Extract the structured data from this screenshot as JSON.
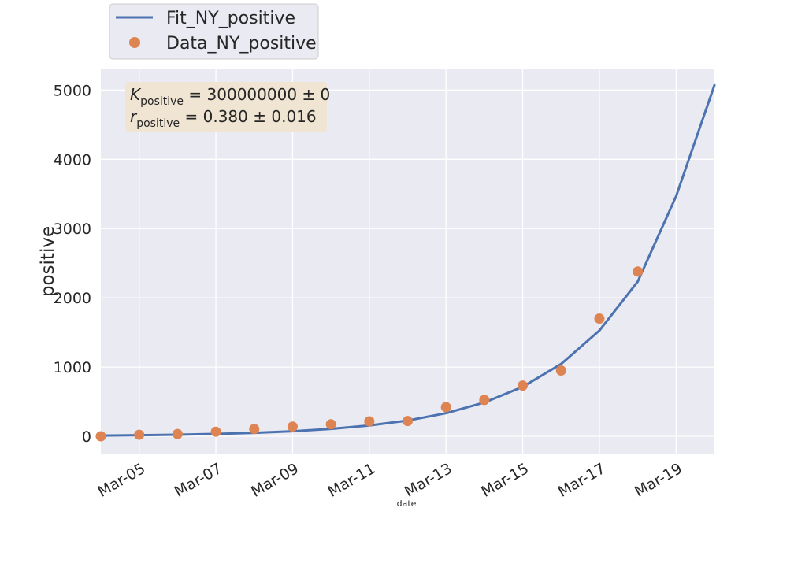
{
  "chart_data": {
    "type": "line",
    "xlabel": "date",
    "ylabel": "positive",
    "ylim": [
      -250,
      5300
    ],
    "xlim": [
      "2020-03-04",
      "2020-03-20"
    ],
    "yticks": [
      0,
      1000,
      2000,
      3000,
      4000,
      5000
    ],
    "xticks": [
      "2020-03-05",
      "2020-03-07",
      "2020-03-09",
      "2020-03-11",
      "2020-03-13",
      "2020-03-15",
      "2020-03-17",
      "2020-03-19"
    ],
    "xtick_labels": [
      "Mar-05",
      "Mar-07",
      "Mar-09",
      "Mar-11",
      "Mar-13",
      "Mar-15",
      "Mar-17",
      "Mar-19"
    ],
    "grid": true,
    "legend": {
      "placement": "top-left, outside plot"
    },
    "series": [
      {
        "name": "Fit_NY_positive",
        "kind": "line",
        "color": "#4c72b0",
        "x": [
          "2020-03-04",
          "2020-03-05",
          "2020-03-06",
          "2020-03-07",
          "2020-03-08",
          "2020-03-09",
          "2020-03-10",
          "2020-03-11",
          "2020-03-12",
          "2020-03-13",
          "2020-03-14",
          "2020-03-15",
          "2020-03-16",
          "2020-03-17",
          "2020-03-18",
          "2020-03-19",
          "2020-03-20"
        ],
        "y": [
          11,
          16,
          23,
          34,
          50,
          73,
          107,
          156,
          228,
          334,
          488,
          714,
          1044,
          1527,
          2234,
          3467,
          5070
        ]
      },
      {
        "name": "Data_NY_positive",
        "kind": "scatter",
        "color": "#dd8452",
        "x": [
          "2020-03-04",
          "2020-03-05",
          "2020-03-06",
          "2020-03-07",
          "2020-03-08",
          "2020-03-09",
          "2020-03-10",
          "2020-03-11",
          "2020-03-12",
          "2020-03-13",
          "2020-03-14",
          "2020-03-15",
          "2020-03-16",
          "2020-03-17",
          "2020-03-18"
        ],
        "y": [
          0,
          22,
          33,
          66,
          105,
          140,
          173,
          216,
          220,
          421,
          525,
          732,
          950,
          1700,
          2380
        ]
      }
    ],
    "annotation": {
      "K_symbol": "K",
      "K_sub": "positive",
      "K_value": " = 300000000 ± 0",
      "r_symbol": "r",
      "r_sub": "positive",
      "r_value": " = 0.380 ± 0.016",
      "box_color": "#f0e4d0"
    },
    "style": {
      "plot_background": "#eaeaf2",
      "grid_color": "#ffffff"
    }
  }
}
